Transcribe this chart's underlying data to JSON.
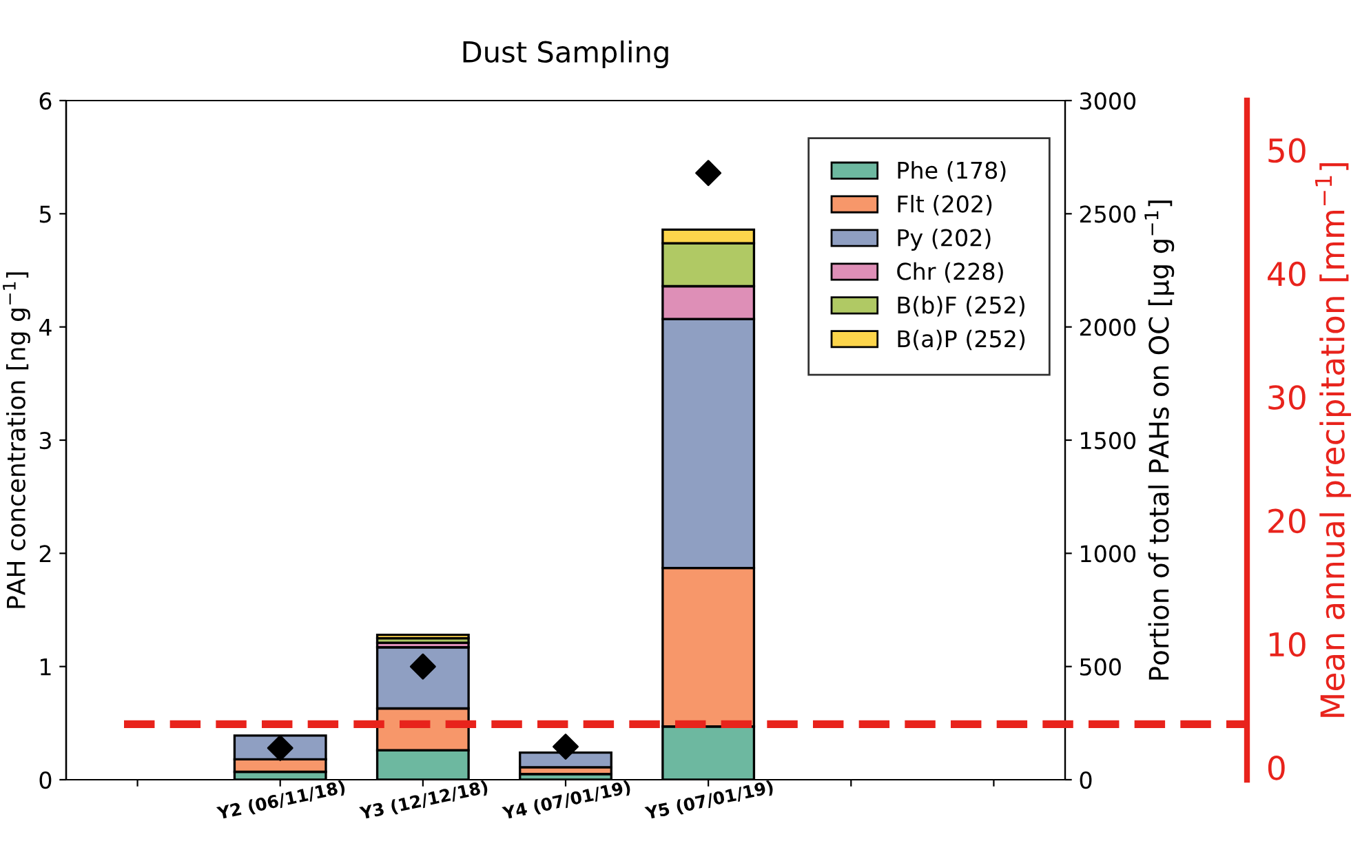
{
  "chart_data": {
    "type": "bar",
    "title": "Dust Sampling",
    "stacked": true,
    "categories": [
      null,
      "Y2 (06/11/18)",
      "Y3 (12/12/18)",
      "Y4 (07/01/19)",
      "Y5 (07/01/19)",
      null,
      null
    ],
    "series": [
      {
        "name": "Phe (178)",
        "color": "#6db8a0",
        "values": [
          null,
          0.07,
          0.26,
          0.05,
          0.47,
          null,
          null
        ]
      },
      {
        "name": "Flt (202)",
        "color": "#f7976a",
        "values": [
          null,
          0.11,
          0.37,
          0.06,
          1.4,
          null,
          null
        ]
      },
      {
        "name": "Py (202)",
        "color": "#8f9fc2",
        "values": [
          null,
          0.21,
          0.54,
          0.13,
          2.2,
          null,
          null
        ]
      },
      {
        "name": "Chr (228)",
        "color": "#de8fb7",
        "values": [
          null,
          null,
          0.04,
          null,
          0.29,
          null,
          null
        ]
      },
      {
        "name": "B(b)F (252)",
        "color": "#b0c964",
        "values": [
          null,
          null,
          0.04,
          null,
          0.38,
          null,
          null
        ]
      },
      {
        "name": "B(a)P (252)",
        "color": "#fcd54b",
        "values": [
          null,
          null,
          0.03,
          null,
          0.12,
          null,
          null
        ]
      },
      {
        "type": "scatter",
        "axis": "y2",
        "marker": "diamond",
        "color": "#000000",
        "x": [
          "Y2 (06/11/18)",
          "Y3 (12/12/18)",
          "Y4 (07/01/19)",
          "Y5 (07/01/19)"
        ],
        "values": [
          140,
          500,
          146,
          2680
        ]
      }
    ],
    "ylabel": "PAH concentration [ng g$^{−1}$]",
    "ylim": [
      0,
      6
    ],
    "yticks": [
      0,
      1,
      2,
      3,
      4,
      5,
      6
    ],
    "y2label": "Portion of total PAHs on OC [μg g$^{−1}$]",
    "y2lim": [
      0,
      3000
    ],
    "y2ticks": [
      0,
      500,
      1000,
      1500,
      2000,
      2500,
      3000
    ],
    "y3label": "Mean annual precipitation [mm$^{−1}$]",
    "y3lim": [
      -1,
      54
    ],
    "y3ticks": [
      0,
      10,
      20,
      30,
      40,
      50
    ],
    "ref_lines": [
      {
        "axis": "y3",
        "value": 3.5,
        "color": "#e8231c",
        "line_style": "dashed"
      }
    ],
    "legend": "top right",
    "grid": false
  }
}
